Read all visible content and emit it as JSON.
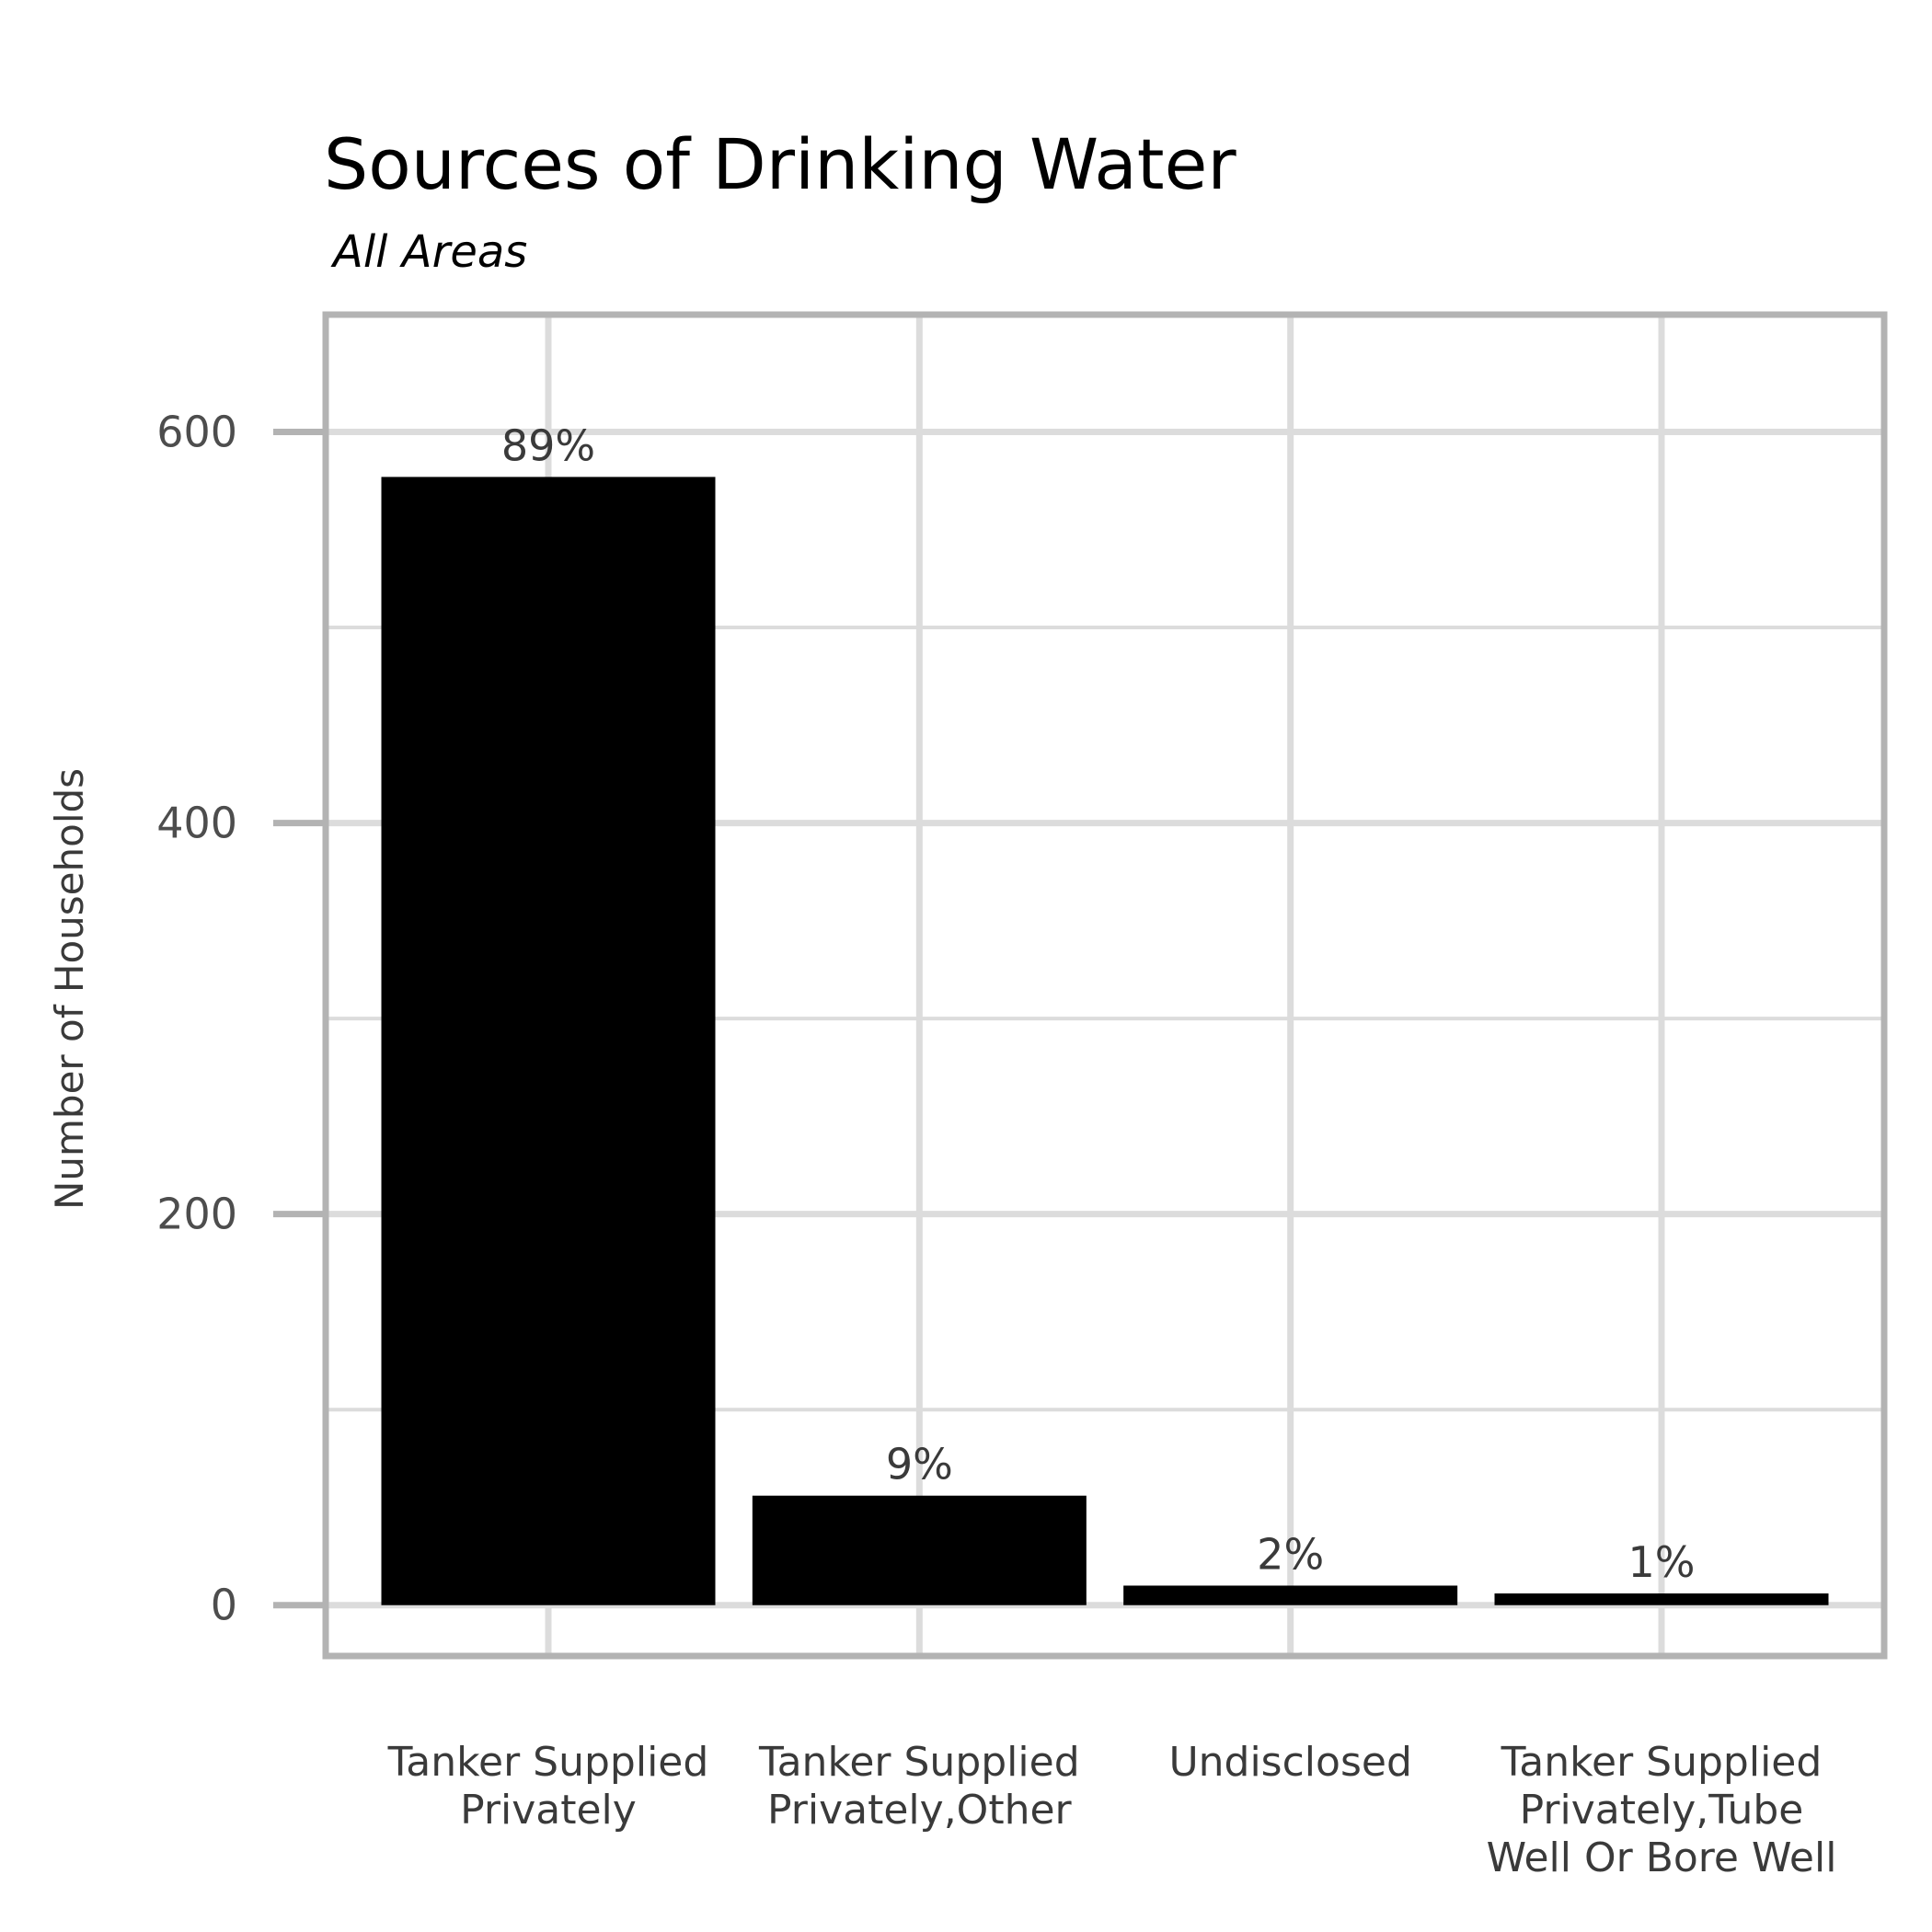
{
  "chart_data": {
    "type": "bar",
    "title": "Sources of Drinking Water",
    "subtitle": "All Areas",
    "xlabel": "",
    "ylabel": "Number of Households",
    "categories": [
      [
        "Tanker Supplied",
        "Privately"
      ],
      [
        "Tanker Supplied",
        "Privately,Other"
      ],
      [
        "Undisclosed"
      ],
      [
        "Tanker Supplied",
        "Privately,Tube",
        "Well Or Bore Well"
      ]
    ],
    "values": [
      577,
      56,
      10,
      6
    ],
    "data_labels": [
      "89%",
      "9%",
      "2%",
      "1%"
    ],
    "yticks": [
      0,
      200,
      400,
      600
    ],
    "ylim": [
      -26,
      660
    ],
    "grid": true,
    "legend": "none",
    "colors": {
      "bar": "#000000",
      "grid": "#dcdcdc",
      "frame": "#b3b3b3",
      "tick": "#b3b3b3"
    }
  }
}
